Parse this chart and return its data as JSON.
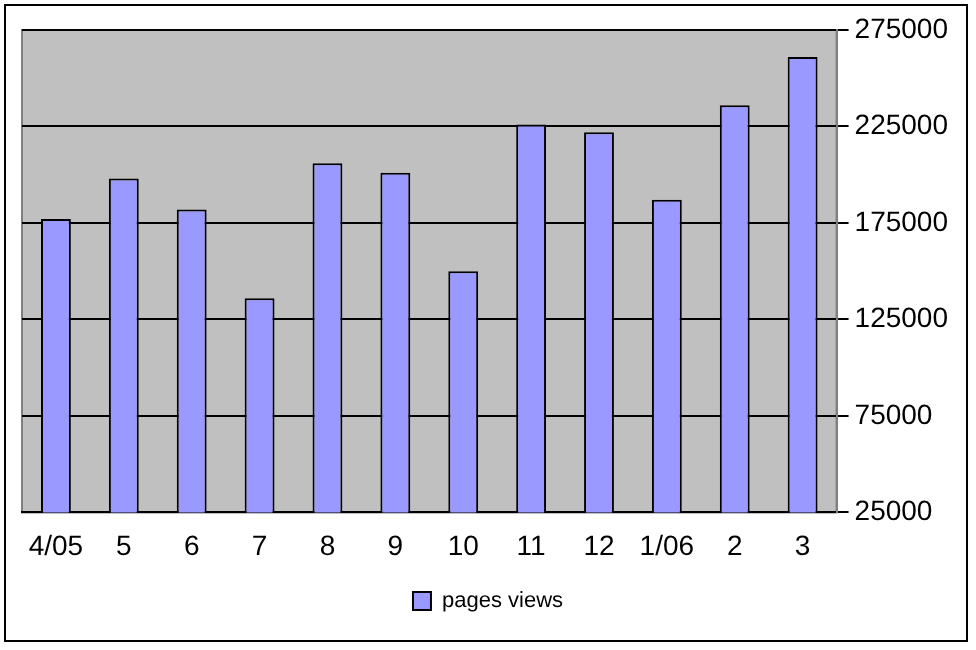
{
  "chart_data": {
    "type": "bar",
    "categories": [
      "4/05",
      "5",
      "6",
      "7",
      "8",
      "9",
      "10",
      "11",
      "12",
      "1/06",
      "2",
      "3"
    ],
    "series": [
      {
        "name": "pages views",
        "color": "#9999ff",
        "values": [
          177000,
          198000,
          182000,
          136000,
          206000,
          201000,
          150000,
          226000,
          222000,
          187000,
          236000,
          261000
        ]
      }
    ],
    "ylim": [
      25000,
      275000
    ],
    "yticks": [
      25000,
      75000,
      125000,
      175000,
      225000,
      275000
    ],
    "grid": "y",
    "legend": "bottom"
  }
}
